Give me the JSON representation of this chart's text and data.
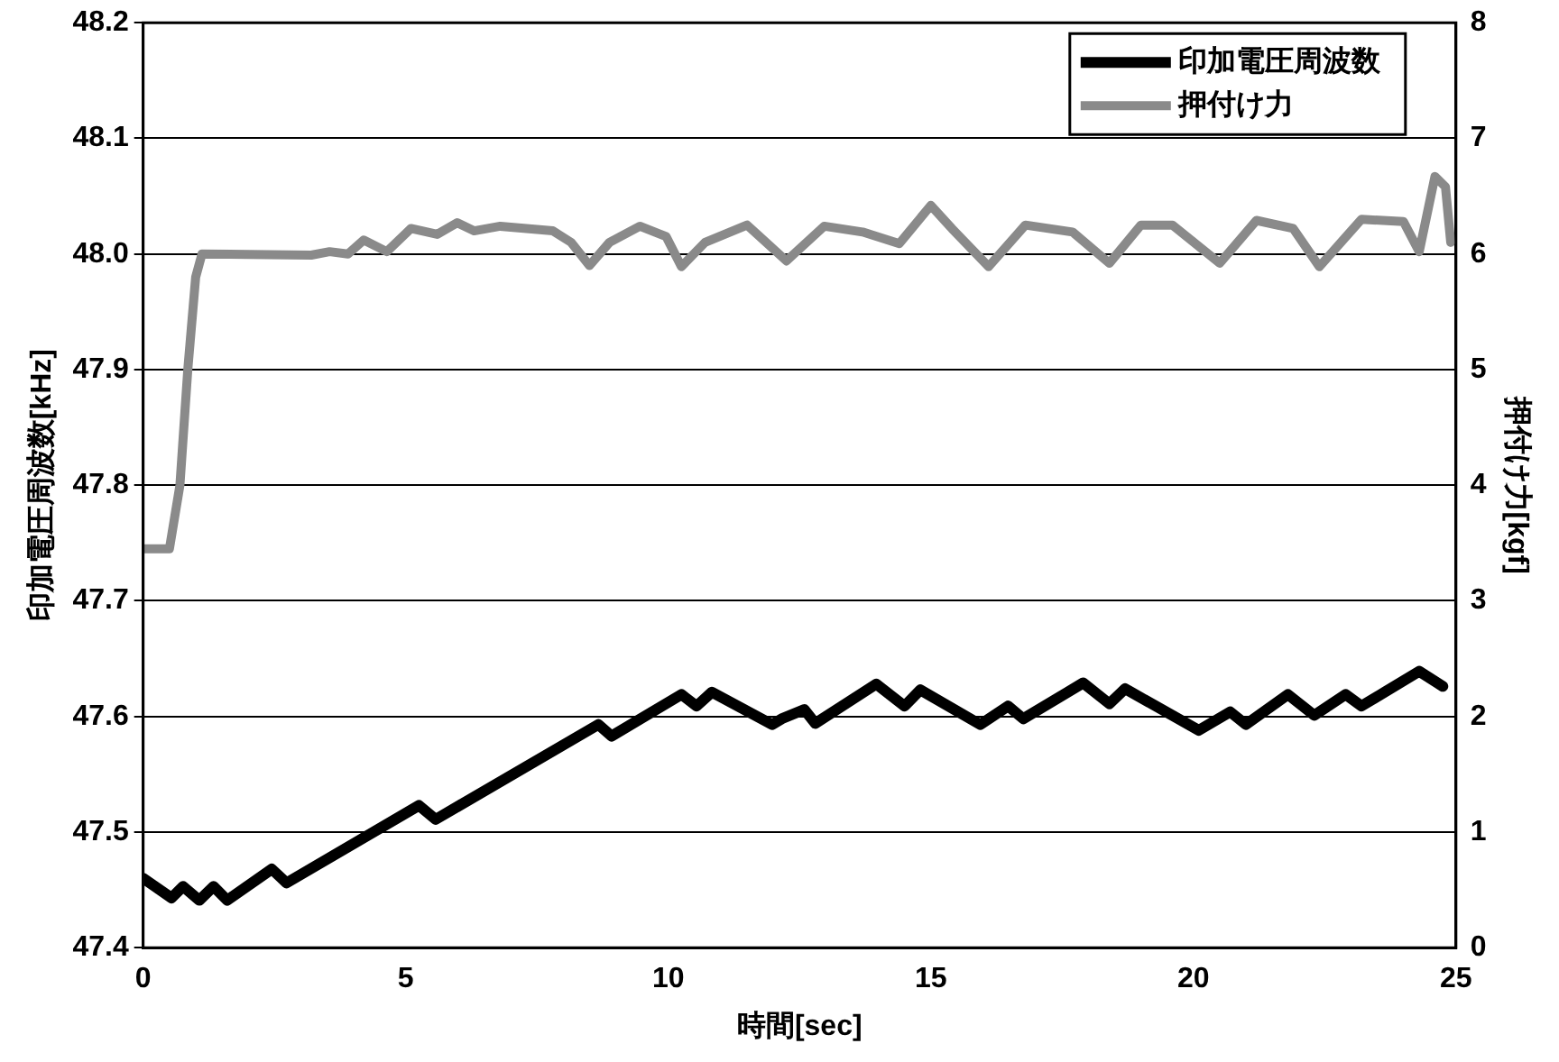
{
  "chart_data": {
    "type": "line",
    "xlabel": "時間[sec]",
    "ylabel": "印加電圧周波数[kHz]",
    "y2label": "押付け力[kgf]",
    "xlim": [
      0,
      25
    ],
    "xticks": [
      0,
      5,
      10,
      15,
      20,
      25
    ],
    "ylim": [
      47.4,
      48.2
    ],
    "yticks": [
      47.4,
      47.5,
      47.6,
      47.7,
      47.8,
      47.9,
      {
        "value": 48,
        "label": "48.0"
      },
      48.1,
      48.2
    ],
    "y2lim": [
      0,
      8
    ],
    "y2ticks": [
      0,
      1,
      2,
      3,
      4,
      5,
      6,
      7,
      8
    ],
    "grid": "y",
    "legend": "top right",
    "marker": "none",
    "line_style": "solid",
    "series": [
      {
        "name": "印加電圧周波数",
        "color": "#000000",
        "x": [
          0,
          0.54,
          0.76,
          1.07,
          1.34,
          1.6,
          2.45,
          2.73,
          5.25,
          5.57,
          8.67,
          8.92,
          10.25,
          10.54,
          10.83,
          11.98,
          12.16,
          12.59,
          12.8,
          13.96,
          14.5,
          14.8,
          15.94,
          16.47,
          16.76,
          17.9,
          18.4,
          18.7,
          20.1,
          20.7,
          21.0,
          21.8,
          22.3,
          22.9,
          23.2,
          24.3,
          24.75
        ],
        "values": [
          47.46,
          47.443,
          47.453,
          47.441,
          47.453,
          47.441,
          47.468,
          47.456,
          47.523,
          47.511,
          47.593,
          47.583,
          47.619,
          47.609,
          47.621,
          47.593,
          47.598,
          47.606,
          47.594,
          47.628,
          47.609,
          47.623,
          47.593,
          47.609,
          47.598,
          47.629,
          47.611,
          47.624,
          47.588,
          47.604,
          47.593,
          47.619,
          47.601,
          47.619,
          47.609,
          47.639,
          47.626
        ]
      },
      {
        "name": "押付け力",
        "color": "#8a8a8a",
        "axis": "y2",
        "x": [
          0,
          0.5,
          0.7,
          0.85,
          1.0,
          1.12,
          3.2,
          3.55,
          3.9,
          4.2,
          4.64,
          5.1,
          5.6,
          5.98,
          6.3,
          6.8,
          7.8,
          8.15,
          8.5,
          8.88,
          9.46,
          9.96,
          10.25,
          10.7,
          11.5,
          12.25,
          12.97,
          13.7,
          14.4,
          15.0,
          15.4,
          16.1,
          16.8,
          17.7,
          18.4,
          19.0,
          19.6,
          20.5,
          21.2,
          21.9,
          22.4,
          23.2,
          24.0,
          24.3,
          24.6,
          24.8,
          24.9
        ],
        "values": [
          3.45,
          3.45,
          4.0,
          5.0,
          5.8,
          6.0,
          5.99,
          6.02,
          6.0,
          6.12,
          6.02,
          6.22,
          6.17,
          6.27,
          6.2,
          6.24,
          6.2,
          6.1,
          5.9,
          6.1,
          6.24,
          6.15,
          5.89,
          6.1,
          6.25,
          5.94,
          6.24,
          6.19,
          6.09,
          6.42,
          6.22,
          5.89,
          6.25,
          6.19,
          5.92,
          6.25,
          6.25,
          5.92,
          6.29,
          6.22,
          5.89,
          6.3,
          6.28,
          6.02,
          6.67,
          6.58,
          6.1
        ]
      }
    ]
  }
}
